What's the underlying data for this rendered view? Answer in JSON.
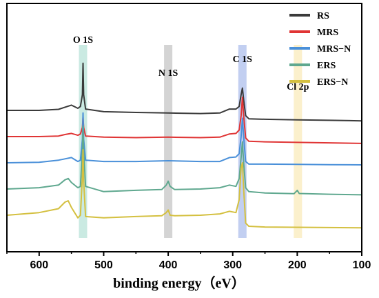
{
  "chart_data": {
    "type": "line",
    "xlabel": "binding energy（eV）",
    "ylabel": "",
    "xlim": [
      650,
      100
    ],
    "x_reversed": true,
    "xticks": [
      600,
      500,
      400,
      300,
      200,
      100
    ],
    "y_ticks_shown": false,
    "legend_placement": "top-right",
    "grid": false,
    "highlight_bands": [
      {
        "label": "O 1S",
        "center": 532,
        "color": "#9fd8cb"
      },
      {
        "label": "N 1S",
        "center": 400,
        "color": "#b0b0b0"
      },
      {
        "label": "C 1S",
        "center": 285,
        "color": "#8fa8e6"
      },
      {
        "label": "Cl 2p",
        "center": 199,
        "color": "#f7e3a2"
      }
    ],
    "series": [
      {
        "name": "RS",
        "color": "#3a3a3a",
        "offset": 4.0,
        "points": [
          [
            650,
            0.0
          ],
          [
            600,
            0.0
          ],
          [
            570,
            0.04
          ],
          [
            560,
            0.12
          ],
          [
            550,
            0.2
          ],
          [
            540,
            0.08
          ],
          [
            536,
            0.15
          ],
          [
            533,
            0.6
          ],
          [
            532,
            1.8
          ],
          [
            531,
            0.6
          ],
          [
            528,
            0.05
          ],
          [
            500,
            -0.05
          ],
          [
            450,
            -0.08
          ],
          [
            400,
            -0.1
          ],
          [
            350,
            -0.12
          ],
          [
            320,
            -0.1
          ],
          [
            305,
            0.05
          ],
          [
            295,
            0.05
          ],
          [
            290,
            0.15
          ],
          [
            287,
            0.6
          ],
          [
            285,
            0.85
          ],
          [
            283,
            0.4
          ],
          [
            280,
            -0.2
          ],
          [
            275,
            -0.32
          ],
          [
            250,
            -0.34
          ],
          [
            200,
            -0.36
          ],
          [
            150,
            -0.38
          ],
          [
            100,
            -0.4
          ]
        ]
      },
      {
        "name": "MRS",
        "color": "#e03535",
        "offset": 3.0,
        "points": [
          [
            650,
            0.0
          ],
          [
            600,
            0.0
          ],
          [
            570,
            0.02
          ],
          [
            560,
            0.08
          ],
          [
            550,
            0.12
          ],
          [
            540,
            0.05
          ],
          [
            536,
            0.1
          ],
          [
            533,
            0.35
          ],
          [
            532,
            0.75
          ],
          [
            531,
            0.35
          ],
          [
            528,
            0.02
          ],
          [
            500,
            -0.02
          ],
          [
            450,
            -0.04
          ],
          [
            400,
            -0.02
          ],
          [
            350,
            -0.04
          ],
          [
            320,
            -0.02
          ],
          [
            305,
            0.1
          ],
          [
            295,
            0.12
          ],
          [
            290,
            0.25
          ],
          [
            287,
            0.8
          ],
          [
            285,
            1.5
          ],
          [
            283,
            0.8
          ],
          [
            280,
            -0.05
          ],
          [
            275,
            -0.18
          ],
          [
            250,
            -0.2
          ],
          [
            200,
            -0.22
          ],
          [
            150,
            -0.24
          ],
          [
            100,
            -0.26
          ]
        ]
      },
      {
        "name": "MRS−N",
        "color": "#4a90d9",
        "offset": 2.0,
        "points": [
          [
            650,
            0.0
          ],
          [
            600,
            0.02
          ],
          [
            570,
            0.1
          ],
          [
            560,
            0.15
          ],
          [
            550,
            0.2
          ],
          [
            540,
            0.05
          ],
          [
            536,
            0.1
          ],
          [
            533,
            0.9
          ],
          [
            532,
            1.9
          ],
          [
            531,
            0.9
          ],
          [
            528,
            0.1
          ],
          [
            500,
            0.05
          ],
          [
            450,
            0.05
          ],
          [
            400,
            0.08
          ],
          [
            350,
            0.05
          ],
          [
            320,
            0.05
          ],
          [
            305,
            0.2
          ],
          [
            295,
            0.22
          ],
          [
            290,
            0.35
          ],
          [
            287,
            1.0
          ],
          [
            285,
            1.7
          ],
          [
            283,
            1.0
          ],
          [
            280,
            0.05
          ],
          [
            275,
            -0.05
          ],
          [
            250,
            -0.05
          ],
          [
            200,
            -0.06
          ],
          [
            150,
            -0.07
          ],
          [
            100,
            -0.08
          ]
        ]
      },
      {
        "name": "ERS",
        "color": "#5fa88f",
        "offset": 1.0,
        "points": [
          [
            650,
            0.0
          ],
          [
            600,
            0.05
          ],
          [
            570,
            0.15
          ],
          [
            560,
            0.35
          ],
          [
            555,
            0.4
          ],
          [
            550,
            0.25
          ],
          [
            540,
            0.05
          ],
          [
            536,
            0.1
          ],
          [
            533,
            1.5
          ],
          [
            532,
            2.4
          ],
          [
            531,
            1.5
          ],
          [
            528,
            0.1
          ],
          [
            500,
            -0.1
          ],
          [
            450,
            -0.05
          ],
          [
            410,
            -0.02
          ],
          [
            403,
            0.15
          ],
          [
            400,
            0.3
          ],
          [
            397,
            0.1
          ],
          [
            390,
            -0.02
          ],
          [
            350,
            0.0
          ],
          [
            320,
            0.05
          ],
          [
            305,
            0.15
          ],
          [
            295,
            0.1
          ],
          [
            290,
            0.4
          ],
          [
            287,
            1.2
          ],
          [
            285,
            1.8
          ],
          [
            283,
            1.0
          ],
          [
            280,
            0.05
          ],
          [
            275,
            -0.1
          ],
          [
            250,
            -0.15
          ],
          [
            205,
            -0.18
          ],
          [
            200,
            -0.05
          ],
          [
            197,
            -0.17
          ],
          [
            150,
            -0.2
          ],
          [
            100,
            -0.22
          ]
        ]
      },
      {
        "name": "ERS−N",
        "color": "#d4c040",
        "offset": 0.0,
        "points": [
          [
            650,
            0.0
          ],
          [
            600,
            0.1
          ],
          [
            570,
            0.25
          ],
          [
            560,
            0.5
          ],
          [
            555,
            0.55
          ],
          [
            550,
            0.3
          ],
          [
            540,
            -0.1
          ],
          [
            536,
            0.0
          ],
          [
            533,
            1.5
          ],
          [
            532,
            2.5
          ],
          [
            531,
            1.3
          ],
          [
            528,
            -0.05
          ],
          [
            500,
            -0.1
          ],
          [
            450,
            -0.05
          ],
          [
            410,
            -0.02
          ],
          [
            403,
            0.1
          ],
          [
            400,
            0.2
          ],
          [
            397,
            0.0
          ],
          [
            390,
            -0.02
          ],
          [
            350,
            0.0
          ],
          [
            320,
            0.05
          ],
          [
            305,
            0.15
          ],
          [
            295,
            0.1
          ],
          [
            290,
            0.6
          ],
          [
            287,
            1.8
          ],
          [
            285,
            2.0
          ],
          [
            283,
            1.0
          ],
          [
            280,
            -0.3
          ],
          [
            275,
            -0.42
          ],
          [
            250,
            -0.45
          ],
          [
            200,
            -0.46
          ],
          [
            150,
            -0.47
          ],
          [
            100,
            -0.48
          ]
        ]
      }
    ]
  }
}
